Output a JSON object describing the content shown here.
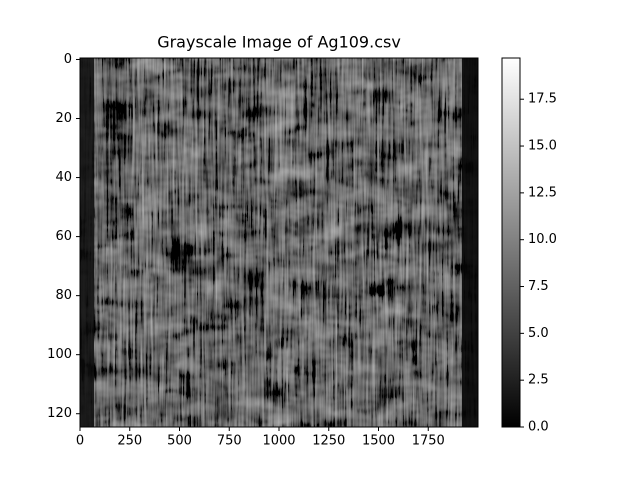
{
  "chart_data": {
    "type": "image",
    "title": "Grayscale Image of Ag109.csv",
    "colormap": "gray",
    "xlim": [
      0,
      2000
    ],
    "xticks": [
      0,
      250,
      500,
      750,
      1000,
      1250,
      1500,
      1750
    ],
    "ylim": [
      124.5,
      -0.5
    ],
    "yticks": [
      0,
      20,
      40,
      60,
      80,
      100,
      120
    ],
    "clim": [
      0,
      19.7
    ],
    "cticks": [
      {
        "value": 0,
        "label": "0.0"
      },
      2.5,
      {
        "value": 5,
        "label": "5.0"
      },
      7.5,
      {
        "value": 10,
        "label": "10.0"
      },
      12.5,
      {
        "value": 15,
        "label": "15.0"
      },
      17.5
    ]
  }
}
